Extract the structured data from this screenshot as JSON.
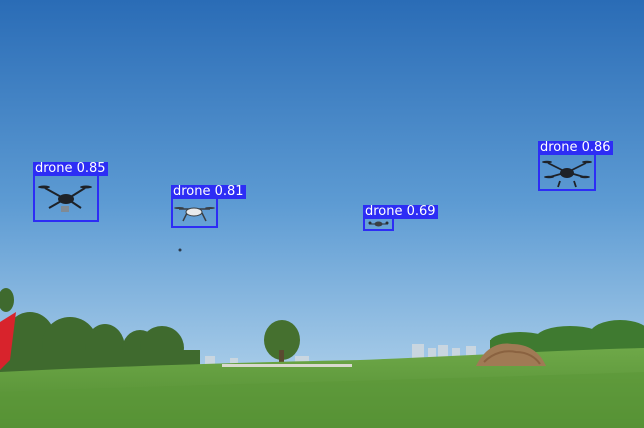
{
  "detections": [
    {
      "label": "drone 0.85",
      "class": "drone",
      "confidence": 0.85
    },
    {
      "label": "drone 0.81",
      "class": "drone",
      "confidence": 0.81
    },
    {
      "label": "drone 0.69",
      "class": "drone",
      "confidence": 0.69
    },
    {
      "label": "drone 0.86",
      "class": "drone",
      "confidence": 0.86
    }
  ],
  "colors": {
    "box": "#2d2df5",
    "label_text": "#ffffff",
    "sky_top": "#2a6fb8",
    "sky_bottom": "#8fbfe3",
    "grass": "#5f9a3c"
  }
}
